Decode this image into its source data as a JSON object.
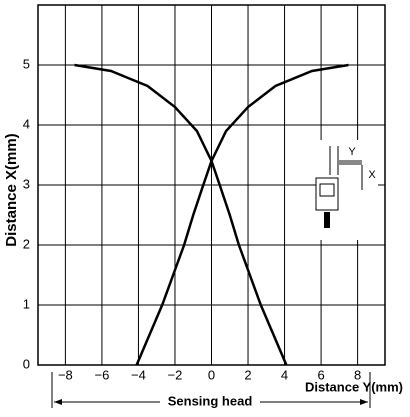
{
  "chart_data": {
    "type": "line",
    "x_label": "Distance Y(mm)",
    "y_label": "Distance X(mm)",
    "annotations": {
      "sensing_head": "Sensing head",
      "inset_y": "Y",
      "inset_x": "X"
    },
    "series": [
      {
        "color": "#000000",
        "x": [
          -4.1,
          -3.4,
          -2.7,
          -2.1,
          -1.5,
          -1.0,
          -0.45,
          0,
          0.8,
          2.0,
          3.5,
          5.5,
          7.5
        ],
        "values": [
          0,
          0.5,
          1,
          1.5,
          2,
          2.5,
          3,
          3.4,
          3.9,
          4.3,
          4.65,
          4.9,
          5
        ]
      },
      {
        "color": "#000000",
        "x": [
          4.1,
          3.4,
          2.7,
          2.1,
          1.5,
          1.0,
          0.45,
          0,
          -0.8,
          -2.0,
          -3.5,
          -5.5,
          -7.5
        ],
        "values": [
          0,
          0.5,
          1,
          1.5,
          2,
          2.5,
          3,
          3.4,
          3.9,
          4.3,
          4.65,
          4.9,
          5
        ]
      }
    ],
    "xlim": [
      -9.5,
      9.5
    ],
    "ylim": [
      0,
      6
    ],
    "xticks": [
      {
        "value": -8,
        "label": "−8"
      },
      {
        "value": -6,
        "label": "−6"
      },
      {
        "value": -4,
        "label": "−4"
      },
      {
        "value": -2,
        "label": "−2"
      },
      0,
      2,
      4,
      6,
      8
    ],
    "yticks": [
      0,
      1,
      2,
      3,
      4,
      5
    ],
    "grid": true
  }
}
